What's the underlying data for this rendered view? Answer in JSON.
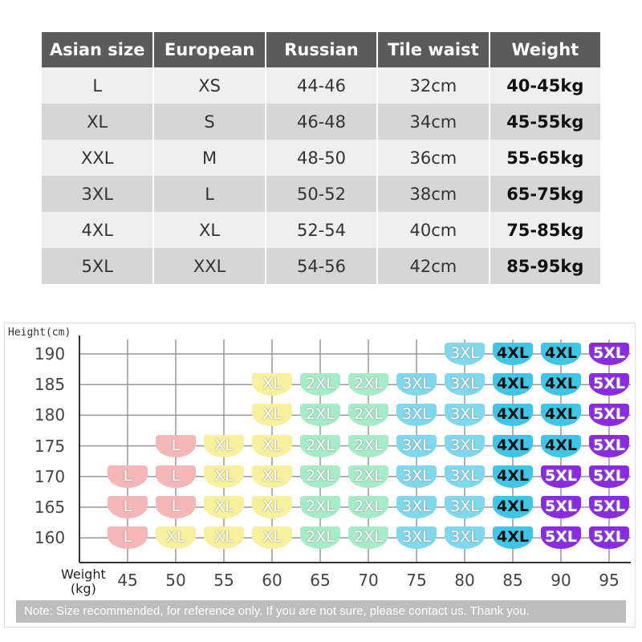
{
  "size_table": {
    "headers": [
      "Asian size",
      "European",
      "Russian",
      "Tile waist",
      "Weight"
    ],
    "rows": [
      [
        "L",
        "XS",
        "44-46",
        "32cm",
        "40-45kg"
      ],
      [
        "XL",
        "S",
        "46-48",
        "34cm",
        "45-55kg"
      ],
      [
        "XXL",
        "M",
        "48-50",
        "36cm",
        "55-65kg"
      ],
      [
        "3XL",
        "L",
        "50-52",
        "38cm",
        "65-75kg"
      ],
      [
        "4XL",
        "XL",
        "52-54",
        "40cm",
        "75-85kg"
      ],
      [
        "5XL",
        "XXL",
        "54-56",
        "42cm",
        "85-95kg"
      ]
    ]
  },
  "size_grid": {
    "y_label": "Height(cm)",
    "x_label": [
      "Weight",
      "(kg)"
    ],
    "heights": [
      190,
      185,
      180,
      175,
      170,
      165,
      160
    ],
    "weights": [
      45,
      50,
      55,
      60,
      65,
      70,
      75,
      80,
      85,
      90,
      95
    ],
    "cells": [
      [
        null,
        null,
        null,
        null,
        null,
        null,
        null,
        "3XL",
        "4XL",
        "4XL",
        "5XL"
      ],
      [
        null,
        null,
        null,
        "XL",
        "2XL",
        "2XL",
        "3XL",
        "3XL",
        "4XL",
        "4XL",
        "5XL"
      ],
      [
        null,
        null,
        null,
        "XL",
        "2XL",
        "2XL",
        "3XL",
        "3XL",
        "4XL",
        "4XL",
        "5XL"
      ],
      [
        null,
        "L",
        "XL",
        "XL",
        "2XL",
        "2XL",
        "3XL",
        "3XL",
        "4XL",
        "4XL",
        "5XL"
      ],
      [
        "L",
        "L",
        "XL",
        "XL",
        "2XL",
        "2XL",
        "3XL",
        "3XL",
        "4XL",
        "5XL",
        "5XL"
      ],
      [
        "L",
        "L",
        "XL",
        "XL",
        "2XL",
        "2XL",
        "3XL",
        "3XL",
        "4XL",
        "5XL",
        "5XL"
      ],
      [
        "L",
        "XL",
        "XL",
        "XL",
        "2XL",
        "2XL",
        "3XL",
        "3XL",
        "4XL",
        "5XL",
        "5XL"
      ]
    ],
    "note": "Note: Size recommended, for reference only. If you are not sure, please contact us. Thank you."
  }
}
